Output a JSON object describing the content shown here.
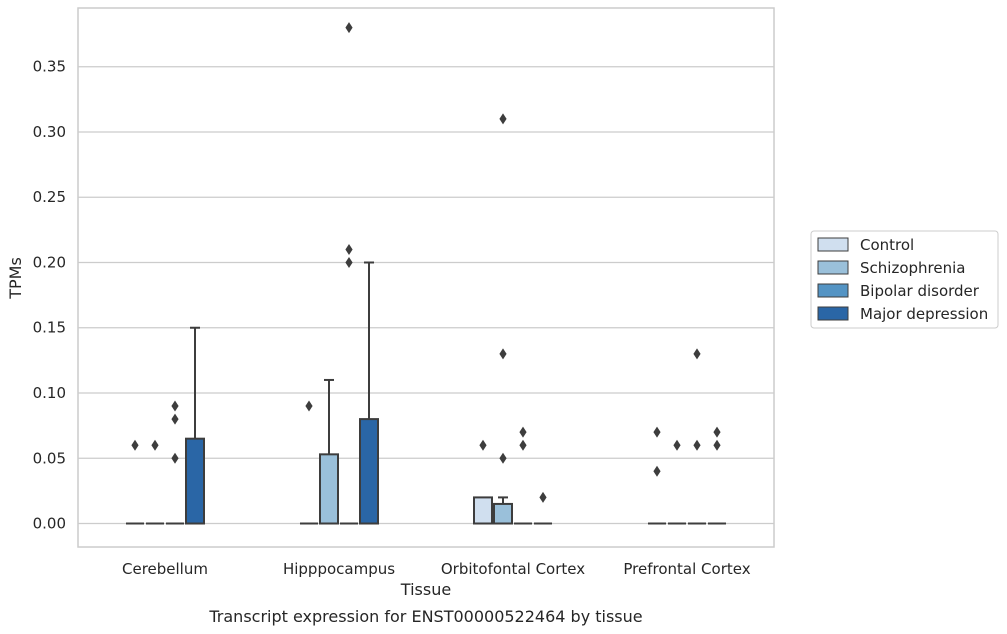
{
  "chart_data": {
    "type": "box",
    "xlabel": "Tissue",
    "ylabel": "TPMs",
    "caption": "Transcript expression for ENST00000522464 by tissue",
    "categories": [
      "Cerebellum",
      "Hipppocampus",
      "Orbitofontal Cortex",
      "Prefrontal Cortex"
    ],
    "ylim": [
      -0.018,
      0.395
    ],
    "yticks": [
      "0.00",
      "0.05",
      "0.10",
      "0.15",
      "0.20",
      "0.25",
      "0.30",
      "0.35"
    ],
    "ytick_values": [
      0,
      0.05,
      0.1,
      0.15,
      0.2,
      0.25,
      0.3,
      0.35
    ],
    "grid": "horizontal",
    "legend_position": "center-right",
    "series": [
      {
        "name": "Control",
        "color": "#d0dfef",
        "boxes": [
          {
            "q1": 0,
            "median": 0,
            "q3": 0,
            "whisker_low": 0,
            "whisker_high": 0,
            "outliers": [
              0.06
            ]
          },
          {
            "q1": 0,
            "median": 0,
            "q3": 0,
            "whisker_low": 0,
            "whisker_high": 0,
            "outliers": [
              0.09
            ]
          },
          {
            "q1": 0,
            "median": 0,
            "q3": 0.02,
            "whisker_low": 0,
            "whisker_high": 0.02,
            "outliers": [
              0.06
            ]
          },
          {
            "q1": 0,
            "median": 0,
            "q3": 0,
            "whisker_low": 0,
            "whisker_high": 0,
            "outliers": [
              0.07,
              0.04
            ]
          }
        ]
      },
      {
        "name": "Schizophrenia",
        "color": "#9ac0da",
        "boxes": [
          {
            "q1": 0,
            "median": 0,
            "q3": 0,
            "whisker_low": 0,
            "whisker_high": 0,
            "outliers": [
              0.06
            ]
          },
          {
            "q1": 0,
            "median": 0,
            "q3": 0.053,
            "whisker_low": 0,
            "whisker_high": 0.11,
            "outliers": []
          },
          {
            "q1": 0,
            "median": 0,
            "q3": 0.015,
            "whisker_low": 0,
            "whisker_high": 0.02,
            "outliers": [
              0.31,
              0.13,
              0.05
            ]
          },
          {
            "q1": 0,
            "median": 0,
            "q3": 0,
            "whisker_low": 0,
            "whisker_high": 0,
            "outliers": [
              0.06
            ]
          }
        ]
      },
      {
        "name": "Bipolar disorder",
        "color": "#5494c4",
        "boxes": [
          {
            "q1": 0,
            "median": 0,
            "q3": 0,
            "whisker_low": 0,
            "whisker_high": 0,
            "outliers": [
              0.09,
              0.08,
              0.05
            ]
          },
          {
            "q1": 0,
            "median": 0,
            "q3": 0,
            "whisker_low": 0,
            "whisker_high": 0,
            "outliers": [
              0.38,
              0.21,
              0.2
            ]
          },
          {
            "q1": 0,
            "median": 0,
            "q3": 0,
            "whisker_low": 0,
            "whisker_high": 0,
            "outliers": [
              0.07,
              0.06
            ]
          },
          {
            "q1": 0,
            "median": 0,
            "q3": 0,
            "whisker_low": 0,
            "whisker_high": 0,
            "outliers": [
              0.13,
              0.06
            ]
          }
        ]
      },
      {
        "name": "Major depression",
        "color": "#2a66a6",
        "boxes": [
          {
            "q1": 0,
            "median": 0,
            "q3": 0.065,
            "whisker_low": 0,
            "whisker_high": 0.15,
            "outliers": []
          },
          {
            "q1": 0,
            "median": 0,
            "q3": 0.08,
            "whisker_low": 0,
            "whisker_high": 0.2,
            "outliers": []
          },
          {
            "q1": 0,
            "median": 0,
            "q3": 0,
            "whisker_low": 0,
            "whisker_high": 0,
            "outliers": [
              0.02
            ]
          },
          {
            "q1": 0,
            "median": 0,
            "q3": 0,
            "whisker_low": 0,
            "whisker_high": 0,
            "outliers": [
              0.07,
              0.06
            ]
          }
        ]
      }
    ]
  }
}
